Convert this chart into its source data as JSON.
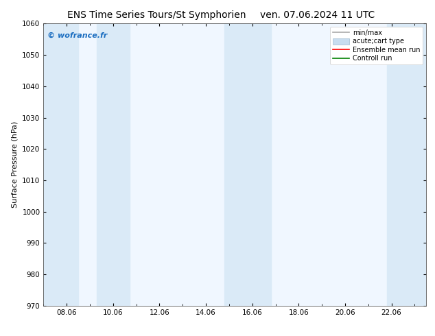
{
  "title_left": "ENS Time Series Tours/St Symphorien",
  "title_right": "ven. 07.06.2024 11 UTC",
  "ylabel": "Surface Pressure (hPa)",
  "ylim": [
    970,
    1060
  ],
  "yticks": [
    970,
    980,
    990,
    1000,
    1010,
    1020,
    1030,
    1040,
    1050,
    1060
  ],
  "xlim_start": 7.0,
  "xlim_end": 23.5,
  "xtick_labels": [
    "08.06",
    "10.06",
    "12.06",
    "14.06",
    "16.06",
    "18.06",
    "20.06",
    "22.06"
  ],
  "xtick_positions": [
    8,
    10,
    12,
    14,
    16,
    18,
    20,
    22
  ],
  "shaded_bands": [
    {
      "x_start": 7.0,
      "x_end": 8.5
    },
    {
      "x_start": 9.3,
      "x_end": 10.7
    },
    {
      "x_start": 14.8,
      "x_end": 16.8
    },
    {
      "x_start": 21.8,
      "x_end": 23.5
    }
  ],
  "band_color": "#daeaf7",
  "plot_bg_color": "#f0f7ff",
  "watermark_text": "© wofrance.fr",
  "watermark_color": "#1a6dc0",
  "legend_labels": [
    "min/max",
    "acute;cart type",
    "Ensemble mean run",
    "Controll run"
  ],
  "legend_colors": [
    "#aaaaaa",
    "#c8ddf0",
    "red",
    "green"
  ],
  "bg_color": "#ffffff",
  "title_fontsize": 10,
  "label_fontsize": 8,
  "tick_fontsize": 7.5,
  "legend_fontsize": 7
}
